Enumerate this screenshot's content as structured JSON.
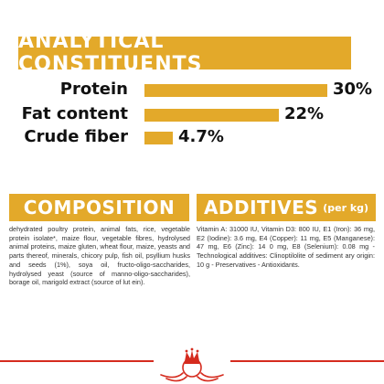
{
  "analytics": {
    "title": "ANALYTICAL CONSTITUENTS",
    "rows": [
      {
        "label": "Protein",
        "value": "30%",
        "percent": 30
      },
      {
        "label": "Fat content",
        "value": "22%",
        "percent": 22
      },
      {
        "label": "Crude fiber",
        "value": "4.7%",
        "percent": 4.7
      }
    ]
  },
  "composition": {
    "title": "COMPOSITION",
    "text": "dehydrated poultry protein, animal fats, rice, vegetable protein isolate*, maize flour, vegetable fibres, hydrolysed animal proteins, maize gluten, wheat flour, maize, yeasts and parts thereof, minerals, chicory pulp, fish oil, psyllium husks and seeds (1%), soya oil, fructo-oligo-saccharides, hydrolysed yeast (source of manno-oligo-saccharides), borage oil, marigold extract (source of lut ein)."
  },
  "additives": {
    "title": "ADDITIVES",
    "suffix": "(per kg)",
    "text": "Vitamin A: 31000 IU, Vitamin D3: 800 IU, E1 (Iron): 36 mg, E2 (Iodine): 3.6 mg, E4 (Copper): 11 mg, E5 (Manganese): 47 mg, E6 (Zinc): 14 0 mg, E8 (Selenium): 0.08 mg -Technological additives: Clinoptilolite of sediment ary origin: 10 g - Preservatives - Antioxidants."
  },
  "colors": {
    "accent": "#e3a92a",
    "brand_red": "#d52b1e"
  },
  "logo": {
    "icon": "royal-canin-crown-logo"
  }
}
